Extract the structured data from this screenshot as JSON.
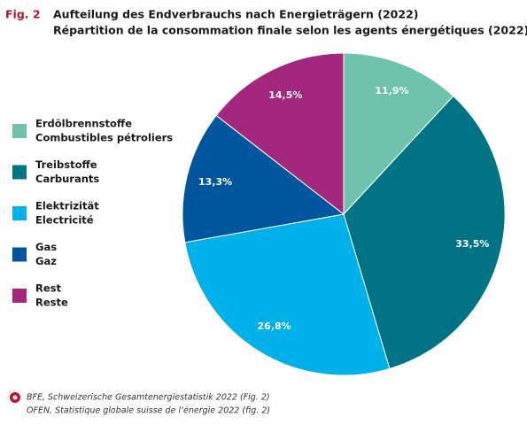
{
  "chart_data": {
    "type": "pie",
    "figure_label": "Fig. 2",
    "title": "Aufteilung des Endverbrauchs nach Energieträgern (2022)",
    "subtitle": "Répartition de la consommation finale selon les agents énergétiques (2022)",
    "categories": [
      "Erdölbrennstoffe",
      "Treibstoffe",
      "Elektrizität",
      "Gas",
      "Rest"
    ],
    "categories_fr": [
      "Combustibles pétroliers",
      "Carburants",
      "Electricité",
      "Gaz",
      "Reste"
    ],
    "values": [
      11.9,
      33.5,
      26.8,
      13.3,
      14.5
    ],
    "value_labels": [
      "11,9%",
      "33,5%",
      "26,8%",
      "13,3%",
      "14,5%"
    ],
    "colors": [
      "#6fc3ad",
      "#007484",
      "#00b0e8",
      "#00559f",
      "#a3287d"
    ],
    "legend": "left",
    "source": [
      "BFE, Schweizerische Gesamtenergiestatistik 2022 (Fig. 2)",
      "OFEN, Statistique globale suisse de l’énergie 2022 (fig. 2)"
    ]
  }
}
